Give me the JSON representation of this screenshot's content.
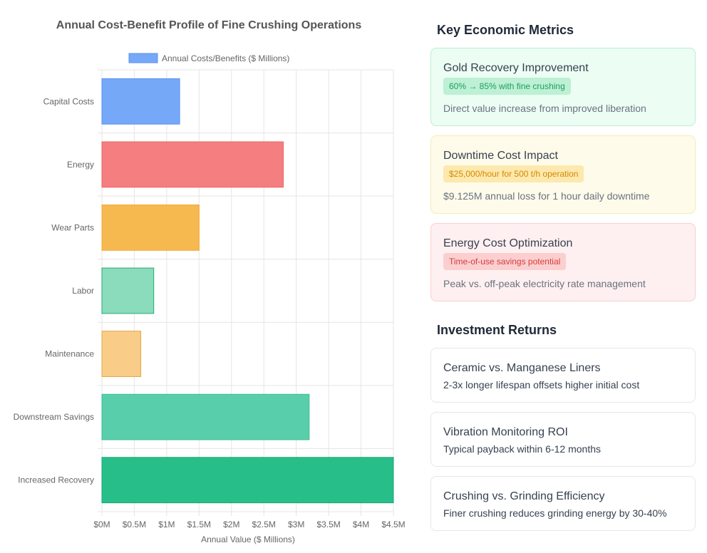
{
  "chart_data": {
    "type": "bar",
    "orientation": "horizontal",
    "title": "Annual Cost-Benefit Profile of Fine Crushing Operations",
    "xlabel": "Annual Value ($ Millions)",
    "ylabel": "",
    "xlim": [
      0,
      4.5
    ],
    "x_ticks": [
      "$0M",
      "$0.5M",
      "$1M",
      "$1.5M",
      "$2M",
      "$2.5M",
      "$3M",
      "$3.5M",
      "$4M",
      "$4.5M"
    ],
    "categories": [
      "Capital Costs",
      "Energy",
      "Wear Parts",
      "Labor",
      "Maintenance",
      "Downstream Savings",
      "Increased Recovery"
    ],
    "series": [
      {
        "name": "Annual Costs/Benefits ($ Millions)",
        "values": [
          1.2,
          2.8,
          1.5,
          0.8,
          0.6,
          3.2,
          4.5
        ]
      }
    ],
    "bar_colors": [
      "#76a8f8",
      "#f47e80",
      "#f6b950",
      "#8bdcbd",
      "#f9cc87",
      "#59ceaa",
      "#28be8a"
    ],
    "bar_border_colors": [
      "#5b8ff0",
      "#e96668",
      "#f0a93a",
      "#23a873",
      "#e2a845",
      "#3fbf95",
      "#12a874"
    ],
    "legend_color": "#76a8f8",
    "legend_position": "top",
    "grid": true
  },
  "metrics": {
    "section_title": "Key Economic Metrics",
    "cards": [
      {
        "title": "Gold Recovery Improvement",
        "badge": "60% → 85% with fine crushing",
        "desc": "Direct value increase from improved liberation"
      },
      {
        "title": "Downtime Cost Impact",
        "badge": "$25,000/hour for 500 t/h operation",
        "desc": "$9.125M annual loss for 1 hour daily downtime"
      },
      {
        "title": "Energy Cost Optimization",
        "badge": "Time-of-use savings potential",
        "desc": "Peak vs. off-peak electricity rate management"
      }
    ]
  },
  "returns": {
    "section_title": "Investment Returns",
    "cards": [
      {
        "title": "Ceramic vs. Manganese Liners",
        "desc": "2-3x longer lifespan offsets higher initial cost"
      },
      {
        "title": "Vibration Monitoring ROI",
        "desc": "Typical payback within 6-12 months"
      },
      {
        "title": "Crushing vs. Grinding Efficiency",
        "desc": "Finer crushing reduces grinding energy by 30-40%"
      }
    ]
  }
}
